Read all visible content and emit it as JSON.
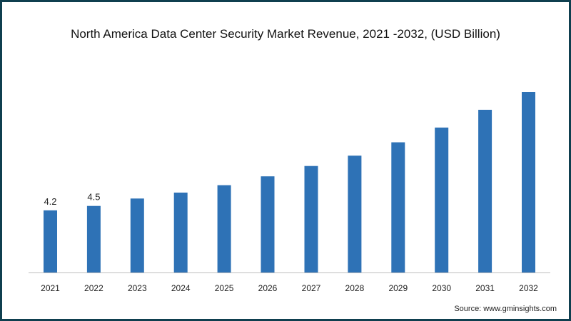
{
  "chart_data": {
    "type": "bar",
    "title": "North America Data Center Security Market Revenue, 2021 -2032, (USD Billion)",
    "categories": [
      "2021",
      "2022",
      "2023",
      "2024",
      "2025",
      "2026",
      "2027",
      "2028",
      "2029",
      "2030",
      "2031",
      "2032"
    ],
    "values": [
      4.2,
      4.5,
      5.0,
      5.4,
      5.9,
      6.5,
      7.2,
      7.9,
      8.8,
      9.8,
      11.0,
      12.2
    ],
    "data_labels": [
      "4.2",
      "4.5",
      "",
      "",
      "",
      "",
      "",
      "",
      "",
      "",
      "",
      ""
    ],
    "xlabel": "",
    "ylabel": "",
    "ylim": [
      0,
      12.2
    ],
    "grid": false,
    "legend": "none",
    "bar_color": "#2e72b6"
  },
  "source": "Source: www.gminsights.com",
  "colors": {
    "border": "#0f3f4f",
    "background": "#ffffff"
  }
}
